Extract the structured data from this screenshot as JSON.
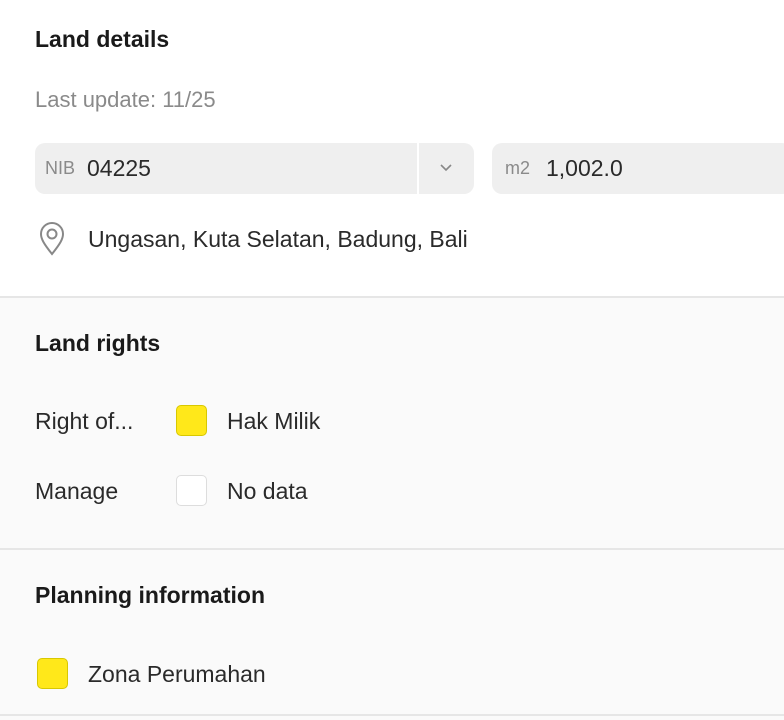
{
  "land_details": {
    "title": "Land details",
    "last_update": "Last update: 11/25",
    "nib_label": "NIB",
    "nib_value": "04225",
    "area_unit": "m2",
    "area_value": "1,002.0",
    "location": "Ungasan, Kuta Selatan, Badung, Bali"
  },
  "land_rights": {
    "title": "Land rights",
    "rows": [
      {
        "label": "Right of...",
        "value": "Hak Milik",
        "color": "#ffe81a"
      },
      {
        "label": "Manage",
        "value": "No data",
        "color": "#ffffff"
      }
    ]
  },
  "planning": {
    "title": "Planning information",
    "items": [
      {
        "value": "Zona Perumahan",
        "color": "#ffe81a"
      }
    ]
  }
}
